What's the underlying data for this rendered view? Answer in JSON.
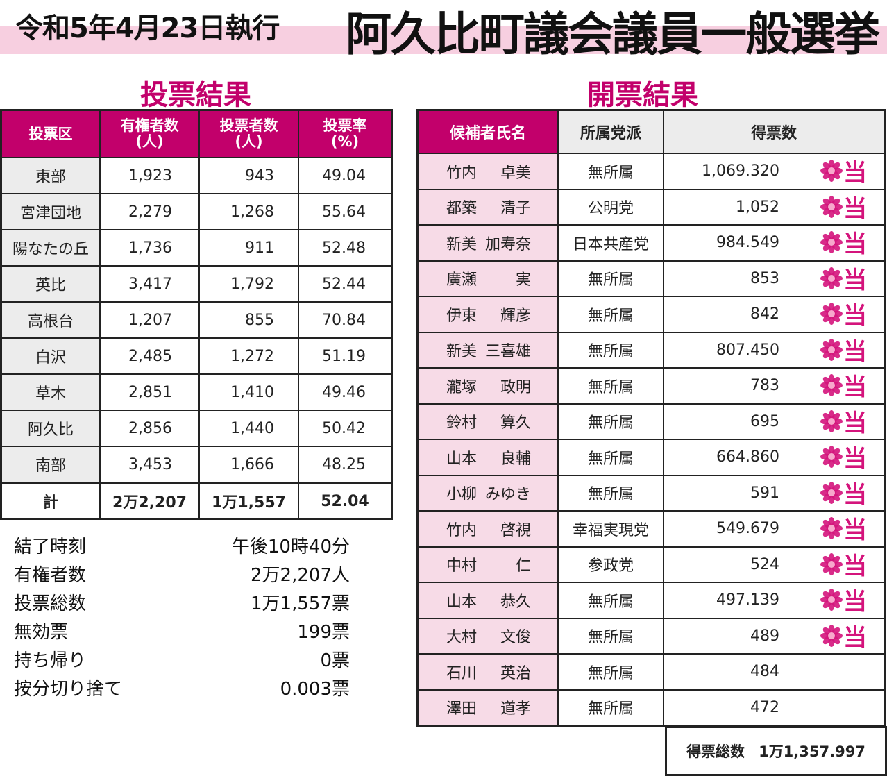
{
  "header": {
    "date_text": "令和5年4月23日執行",
    "title": "阿久比町議会議員一般選挙"
  },
  "voting": {
    "section_title": "投票結果",
    "headers": {
      "district": "投票区",
      "eligible": "有権者数",
      "eligible_unit": "(人)",
      "voters": "投票者数",
      "voters_unit": "(人)",
      "rate": "投票率",
      "rate_unit": "(%)"
    },
    "rows": [
      {
        "district": "東部",
        "eligible": "1,923",
        "voters": "943",
        "rate": "49.04"
      },
      {
        "district": "宮津団地",
        "eligible": "2,279",
        "voters": "1,268",
        "rate": "55.64"
      },
      {
        "district": "陽なたの丘",
        "eligible": "1,736",
        "voters": "911",
        "rate": "52.48"
      },
      {
        "district": "英比",
        "eligible": "3,417",
        "voters": "1,792",
        "rate": "52.44"
      },
      {
        "district": "高根台",
        "eligible": "1,207",
        "voters": "855",
        "rate": "70.84"
      },
      {
        "district": "白沢",
        "eligible": "2,485",
        "voters": "1,272",
        "rate": "51.19"
      },
      {
        "district": "草木",
        "eligible": "2,851",
        "voters": "1,410",
        "rate": "49.46"
      },
      {
        "district": "阿久比",
        "eligible": "2,856",
        "voters": "1,440",
        "rate": "50.42"
      },
      {
        "district": "南部",
        "eligible": "3,453",
        "voters": "1,666",
        "rate": "48.25"
      }
    ],
    "total": {
      "label": "計",
      "eligible": "2万2,207",
      "voters": "1万1,557",
      "rate": "52.04"
    }
  },
  "summary": [
    {
      "label": "結了時刻",
      "value": "午後10時40分"
    },
    {
      "label": "有権者数",
      "value": "2万2,207人"
    },
    {
      "label": "投票総数",
      "value": "1万1,557票"
    },
    {
      "label": "無効票",
      "value": "199票"
    },
    {
      "label": "持ち帰り",
      "value": "0票"
    },
    {
      "label": "按分切り捨て",
      "value": "0.003票"
    }
  ],
  "results": {
    "section_title": "開票結果",
    "headers": {
      "name": "候補者氏名",
      "party": "所属党派",
      "votes": "得票数"
    },
    "win_mark": "当",
    "win_color": "#d4147c",
    "rows": [
      {
        "surname": "竹内",
        "given": "卓美",
        "party": "無所属",
        "votes": "1,069.320",
        "elected": true
      },
      {
        "surname": "都築",
        "given": "清子",
        "party": "公明党",
        "votes": "1,052",
        "elected": true
      },
      {
        "surname": "新美",
        "given": "加寿奈",
        "party": "日本共産党",
        "votes": "984.549",
        "elected": true
      },
      {
        "surname": "廣瀬",
        "given": "実",
        "party": "無所属",
        "votes": "853",
        "elected": true
      },
      {
        "surname": "伊東",
        "given": "輝彦",
        "party": "無所属",
        "votes": "842",
        "elected": true
      },
      {
        "surname": "新美",
        "given": "三喜雄",
        "party": "無所属",
        "votes": "807.450",
        "elected": true
      },
      {
        "surname": "瀧塚",
        "given": "政明",
        "party": "無所属",
        "votes": "783",
        "elected": true
      },
      {
        "surname": "鈴村",
        "given": "算久",
        "party": "無所属",
        "votes": "695",
        "elected": true
      },
      {
        "surname": "山本",
        "given": "良輔",
        "party": "無所属",
        "votes": "664.860",
        "elected": true
      },
      {
        "surname": "小柳",
        "given": "みゆき",
        "party": "無所属",
        "votes": "591",
        "elected": true
      },
      {
        "surname": "竹内",
        "given": "啓視",
        "party": "幸福実現党",
        "votes": "549.679",
        "elected": true
      },
      {
        "surname": "中村",
        "given": "仁",
        "party": "参政党",
        "votes": "524",
        "elected": true
      },
      {
        "surname": "山本",
        "given": "恭久",
        "party": "無所属",
        "votes": "497.139",
        "elected": true
      },
      {
        "surname": "大村",
        "given": "文俊",
        "party": "無所属",
        "votes": "489",
        "elected": true
      },
      {
        "surname": "石川",
        "given": "英治",
        "party": "無所属",
        "votes": "484",
        "elected": false
      },
      {
        "surname": "澤田",
        "given": "道孝",
        "party": "無所属",
        "votes": "472",
        "elected": false
      }
    ],
    "total_label": "得票総数",
    "total_value": "1万1,357.997"
  }
}
